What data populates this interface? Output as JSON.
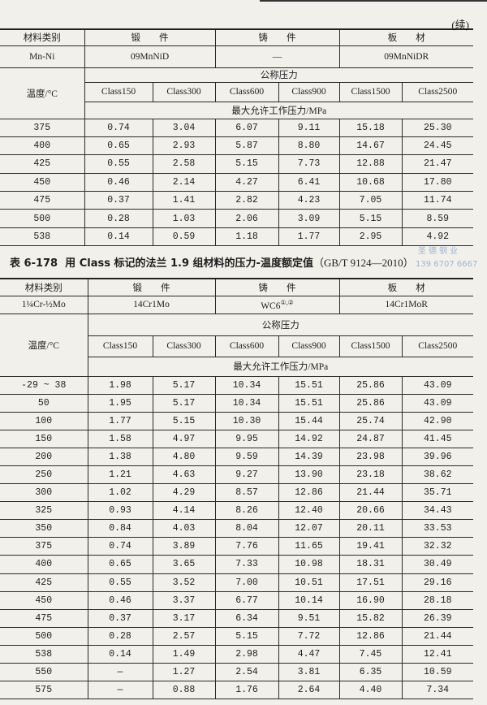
{
  "continued_label": "(续)",
  "table1": {
    "hdr_material_category": "材料类别",
    "hdr_forging": "锻　　件",
    "hdr_casting": "铸　　件",
    "hdr_plate": "板　　材",
    "material_group": "Mn-Ni",
    "forging": "09MnNiD",
    "casting": "—",
    "plate": "09MnNiDR",
    "nominal_pressure": "公称压力",
    "temperature": "温度/°C",
    "classes": [
      "Class150",
      "Class300",
      "Class600",
      "Class900",
      "Class1500",
      "Class2500"
    ],
    "max_pressure": "最大允许工作压力/MPa",
    "rows": [
      [
        "375",
        "0.74",
        "3.04",
        "6.07",
        "9.11",
        "15.18",
        "25.30"
      ],
      [
        "400",
        "0.65",
        "2.93",
        "5.87",
        "8.80",
        "14.67",
        "24.45"
      ],
      [
        "425",
        "0.55",
        "2.58",
        "5.15",
        "7.73",
        "12.88",
        "21.47"
      ],
      [
        "450",
        "0.46",
        "2.14",
        "4.27",
        "6.41",
        "10.68",
        "17.80"
      ],
      [
        "475",
        "0.37",
        "1.41",
        "2.82",
        "4.23",
        "7.05",
        "11.74"
      ],
      [
        "500",
        "0.28",
        "1.03",
        "2.06",
        "3.09",
        "5.15",
        "8.59"
      ],
      [
        "538",
        "0.14",
        "0.59",
        "1.18",
        "1.77",
        "2.95",
        "4.92"
      ]
    ]
  },
  "table2": {
    "caption_number": "表 6-178",
    "caption_title": "用 Class 标记的法兰 1.9 组材料的压力-温度额定值",
    "caption_standard": "（GB/T 9124—2010）",
    "hdr_material_category": "材料类别",
    "hdr_forging": "锻　　件",
    "hdr_casting": "铸　　件",
    "hdr_plate": "板　　材",
    "material_group": "1¼Cr-½Mo",
    "forging": "14Cr1Mo",
    "casting": "WC6",
    "casting_notes": "①,②",
    "plate": "14Cr1MoR",
    "nominal_pressure": "公称压力",
    "temperature": "温度/°C",
    "classes": [
      "Class150",
      "Class300",
      "Class600",
      "Class900",
      "Class1500",
      "Class2500"
    ],
    "max_pressure": "最大允许工作压力/MPa",
    "rows": [
      [
        "-29 ~ 38",
        "1.98",
        "5.17",
        "10.34",
        "15.51",
        "25.86",
        "43.09"
      ],
      [
        "50",
        "1.95",
        "5.17",
        "10.34",
        "15.51",
        "25.86",
        "43.09"
      ],
      [
        "100",
        "1.77",
        "5.15",
        "10.30",
        "15.44",
        "25.74",
        "42.90"
      ],
      [
        "150",
        "1.58",
        "4.97",
        "9.95",
        "14.92",
        "24.87",
        "41.45"
      ],
      [
        "200",
        "1.38",
        "4.80",
        "9.59",
        "14.39",
        "23.98",
        "39.96"
      ],
      [
        "250",
        "1.21",
        "4.63",
        "9.27",
        "13.90",
        "23.18",
        "38.62"
      ],
      [
        "300",
        "1.02",
        "4.29",
        "8.57",
        "12.86",
        "21.44",
        "35.71"
      ],
      [
        "325",
        "0.93",
        "4.14",
        "8.26",
        "12.40",
        "20.66",
        "34.43"
      ],
      [
        "350",
        "0.84",
        "4.03",
        "8.04",
        "12.07",
        "20.11",
        "33.53"
      ],
      [
        "375",
        "0.74",
        "3.89",
        "7.76",
        "11.65",
        "19.41",
        "32.32"
      ],
      [
        "400",
        "0.65",
        "3.65",
        "7.33",
        "10.98",
        "18.31",
        "30.49"
      ],
      [
        "425",
        "0.55",
        "3.52",
        "7.00",
        "10.51",
        "17.51",
        "29.16"
      ],
      [
        "450",
        "0.46",
        "3.37",
        "6.77",
        "10.14",
        "16.90",
        "28.18"
      ],
      [
        "475",
        "0.37",
        "3.17",
        "6.34",
        "9.51",
        "15.82",
        "26.39"
      ],
      [
        "500",
        "0.28",
        "2.57",
        "5.15",
        "7.72",
        "12.86",
        "21.44"
      ],
      [
        "538",
        "0.14",
        "1.49",
        "2.98",
        "4.47",
        "7.45",
        "12.41"
      ],
      [
        "550",
        "—",
        "1.27",
        "2.54",
        "3.81",
        "6.35",
        "10.59"
      ],
      [
        "575",
        "—",
        "0.88",
        "1.76",
        "2.64",
        "4.40",
        "7.34"
      ]
    ]
  },
  "watermark": {
    "company": "圣德钢业",
    "phone": "139 6707 6667"
  }
}
